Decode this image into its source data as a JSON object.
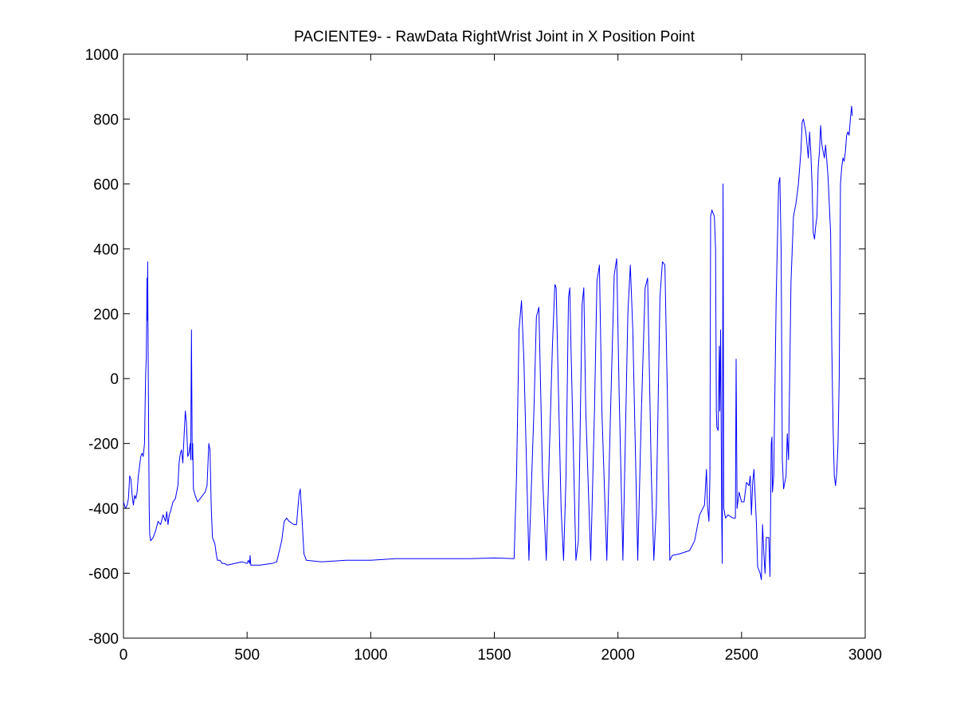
{
  "chart_data": {
    "type": "line",
    "title": "PACIENTE9- - RawData RightWrist Joint in X Position Point",
    "xlabel": "",
    "ylabel": "",
    "xlim": [
      0,
      3000
    ],
    "ylim": [
      -800,
      1000
    ],
    "xticks": [
      0,
      500,
      1000,
      1500,
      2000,
      2500,
      3000
    ],
    "yticks": [
      -800,
      -600,
      -400,
      -200,
      0,
      200,
      400,
      600,
      800,
      1000
    ],
    "grid": false,
    "legend": "none",
    "series": [
      {
        "color": "#0000ff",
        "points": [
          [
            0,
            -380
          ],
          [
            8,
            -400
          ],
          [
            15,
            -390
          ],
          [
            20,
            -370
          ],
          [
            25,
            -300
          ],
          [
            30,
            -310
          ],
          [
            35,
            -360
          ],
          [
            40,
            -390
          ],
          [
            45,
            -360
          ],
          [
            50,
            -370
          ],
          [
            55,
            -350
          ],
          [
            60,
            -300
          ],
          [
            65,
            -270
          ],
          [
            70,
            -240
          ],
          [
            75,
            -230
          ],
          [
            80,
            -240
          ],
          [
            85,
            -200
          ],
          [
            88,
            -60
          ],
          [
            90,
            20
          ],
          [
            92,
            60
          ],
          [
            94,
            200
          ],
          [
            95,
            310
          ],
          [
            96,
            180
          ],
          [
            97,
            240
          ],
          [
            98,
            360
          ],
          [
            99,
            200
          ],
          [
            100,
            60
          ],
          [
            102,
            -200
          ],
          [
            104,
            -400
          ],
          [
            106,
            -480
          ],
          [
            110,
            -500
          ],
          [
            120,
            -490
          ],
          [
            130,
            -470
          ],
          [
            140,
            -440
          ],
          [
            150,
            -450
          ],
          [
            160,
            -420
          ],
          [
            170,
            -440
          ],
          [
            175,
            -410
          ],
          [
            180,
            -450
          ],
          [
            185,
            -420
          ],
          [
            190,
            -410
          ],
          [
            200,
            -380
          ],
          [
            210,
            -370
          ],
          [
            215,
            -350
          ],
          [
            220,
            -330
          ],
          [
            225,
            -260
          ],
          [
            230,
            -230
          ],
          [
            235,
            -220
          ],
          [
            240,
            -260
          ],
          [
            245,
            -180
          ],
          [
            250,
            -100
          ],
          [
            255,
            -140
          ],
          [
            260,
            -240
          ],
          [
            265,
            -230
          ],
          [
            270,
            -200
          ],
          [
            272,
            -250
          ],
          [
            275,
            150
          ],
          [
            278,
            -250
          ],
          [
            280,
            -200
          ],
          [
            283,
            -340
          ],
          [
            290,
            -360
          ],
          [
            300,
            -380
          ],
          [
            310,
            -370
          ],
          [
            320,
            -360
          ],
          [
            330,
            -350
          ],
          [
            338,
            -330
          ],
          [
            345,
            -200
          ],
          [
            350,
            -220
          ],
          [
            355,
            -400
          ],
          [
            360,
            -490
          ],
          [
            370,
            -510
          ],
          [
            375,
            -540
          ],
          [
            380,
            -560
          ],
          [
            390,
            -560
          ],
          [
            400,
            -570
          ],
          [
            410,
            -570
          ],
          [
            420,
            -575
          ],
          [
            450,
            -570
          ],
          [
            480,
            -565
          ],
          [
            500,
            -570
          ],
          [
            505,
            -560
          ],
          [
            510,
            -570
          ],
          [
            512,
            -545
          ],
          [
            515,
            -575
          ],
          [
            550,
            -575
          ],
          [
            600,
            -570
          ],
          [
            620,
            -565
          ],
          [
            640,
            -500
          ],
          [
            650,
            -440
          ],
          [
            660,
            -430
          ],
          [
            670,
            -440
          ],
          [
            690,
            -450
          ],
          [
            700,
            -450
          ],
          [
            710,
            -360
          ],
          [
            715,
            -340
          ],
          [
            720,
            -400
          ],
          [
            730,
            -540
          ],
          [
            740,
            -560
          ],
          [
            800,
            -565
          ],
          [
            900,
            -560
          ],
          [
            1000,
            -560
          ],
          [
            1100,
            -555
          ],
          [
            1200,
            -555
          ],
          [
            1300,
            -555
          ],
          [
            1400,
            -555
          ],
          [
            1500,
            -553
          ],
          [
            1580,
            -555
          ],
          [
            1590,
            -300
          ],
          [
            1600,
            150
          ],
          [
            1610,
            240
          ],
          [
            1620,
            50
          ],
          [
            1640,
            -560
          ],
          [
            1660,
            -100
          ],
          [
            1670,
            190
          ],
          [
            1680,
            220
          ],
          [
            1695,
            -300
          ],
          [
            1710,
            -560
          ],
          [
            1735,
            100
          ],
          [
            1745,
            290
          ],
          [
            1750,
            280
          ],
          [
            1770,
            -400
          ],
          [
            1780,
            -560
          ],
          [
            1790,
            -300
          ],
          [
            1800,
            250
          ],
          [
            1805,
            280
          ],
          [
            1810,
            100
          ],
          [
            1830,
            -560
          ],
          [
            1840,
            -500
          ],
          [
            1855,
            230
          ],
          [
            1862,
            280
          ],
          [
            1870,
            -100
          ],
          [
            1890,
            -560
          ],
          [
            1905,
            -100
          ],
          [
            1915,
            300
          ],
          [
            1925,
            350
          ],
          [
            1935,
            -100
          ],
          [
            1955,
            -560
          ],
          [
            1970,
            -100
          ],
          [
            1985,
            320
          ],
          [
            1995,
            370
          ],
          [
            2005,
            -50
          ],
          [
            2020,
            -560
          ],
          [
            2040,
            200
          ],
          [
            2050,
            350
          ],
          [
            2060,
            150
          ],
          [
            2080,
            -560
          ],
          [
            2095,
            -100
          ],
          [
            2110,
            280
          ],
          [
            2120,
            310
          ],
          [
            2135,
            -300
          ],
          [
            2145,
            -560
          ],
          [
            2155,
            -400
          ],
          [
            2170,
            250
          ],
          [
            2180,
            360
          ],
          [
            2190,
            350
          ],
          [
            2200,
            -50
          ],
          [
            2210,
            -560
          ],
          [
            2220,
            -545
          ],
          [
            2250,
            -540
          ],
          [
            2290,
            -530
          ],
          [
            2310,
            -500
          ],
          [
            2330,
            -420
          ],
          [
            2350,
            -390
          ],
          [
            2358,
            -280
          ],
          [
            2362,
            -390
          ],
          [
            2368,
            -440
          ],
          [
            2372,
            -300
          ],
          [
            2375,
            500
          ],
          [
            2380,
            520
          ],
          [
            2385,
            510
          ],
          [
            2390,
            500
          ],
          [
            2395,
            400
          ],
          [
            2398,
            -100
          ],
          [
            2400,
            -150
          ],
          [
            2405,
            -160
          ],
          [
            2410,
            100
          ],
          [
            2412,
            -100
          ],
          [
            2415,
            150
          ],
          [
            2420,
            -450
          ],
          [
            2422,
            -570
          ],
          [
            2425,
            600
          ],
          [
            2428,
            -400
          ],
          [
            2435,
            -430
          ],
          [
            2445,
            -420
          ],
          [
            2455,
            -425
          ],
          [
            2465,
            -430
          ],
          [
            2475,
            -430
          ],
          [
            2478,
            60
          ],
          [
            2482,
            -400
          ],
          [
            2490,
            -350
          ],
          [
            2500,
            -380
          ],
          [
            2510,
            -380
          ],
          [
            2520,
            -320
          ],
          [
            2530,
            -330
          ],
          [
            2535,
            -300
          ],
          [
            2540,
            -420
          ],
          [
            2545,
            -320
          ],
          [
            2550,
            -280
          ],
          [
            2560,
            -450
          ],
          [
            2565,
            -580
          ],
          [
            2575,
            -600
          ],
          [
            2580,
            -620
          ],
          [
            2585,
            -450
          ],
          [
            2590,
            -540
          ],
          [
            2595,
            -600
          ],
          [
            2600,
            -490
          ],
          [
            2610,
            -490
          ],
          [
            2615,
            -610
          ],
          [
            2620,
            -200
          ],
          [
            2623,
            -180
          ],
          [
            2625,
            -350
          ],
          [
            2630,
            -300
          ],
          [
            2640,
            250
          ],
          [
            2650,
            600
          ],
          [
            2655,
            620
          ],
          [
            2660,
            400
          ],
          [
            2665,
            -250
          ],
          [
            2670,
            -340
          ],
          [
            2680,
            -300
          ],
          [
            2685,
            -170
          ],
          [
            2690,
            -250
          ],
          [
            2700,
            300
          ],
          [
            2710,
            500
          ],
          [
            2720,
            540
          ],
          [
            2730,
            600
          ],
          [
            2740,
            700
          ],
          [
            2745,
            790
          ],
          [
            2750,
            800
          ],
          [
            2755,
            780
          ],
          [
            2760,
            760
          ],
          [
            2765,
            720
          ],
          [
            2770,
            680
          ],
          [
            2775,
            760
          ],
          [
            2780,
            700
          ],
          [
            2785,
            600
          ],
          [
            2790,
            450
          ],
          [
            2795,
            430
          ],
          [
            2800,
            470
          ],
          [
            2805,
            500
          ],
          [
            2810,
            650
          ],
          [
            2815,
            700
          ],
          [
            2820,
            780
          ],
          [
            2825,
            720
          ],
          [
            2830,
            700
          ],
          [
            2835,
            680
          ],
          [
            2840,
            720
          ],
          [
            2845,
            670
          ],
          [
            2850,
            620
          ],
          [
            2860,
            450
          ],
          [
            2865,
            100
          ],
          [
            2870,
            -150
          ],
          [
            2875,
            -300
          ],
          [
            2880,
            -330
          ],
          [
            2885,
            -290
          ],
          [
            2890,
            -200
          ],
          [
            2895,
            0
          ],
          [
            2900,
            600
          ],
          [
            2905,
            650
          ],
          [
            2910,
            680
          ],
          [
            2915,
            670
          ],
          [
            2920,
            700
          ],
          [
            2925,
            750
          ],
          [
            2930,
            760
          ],
          [
            2935,
            750
          ],
          [
            2940,
            800
          ],
          [
            2945,
            840
          ],
          [
            2948,
            810
          ]
        ]
      }
    ]
  }
}
